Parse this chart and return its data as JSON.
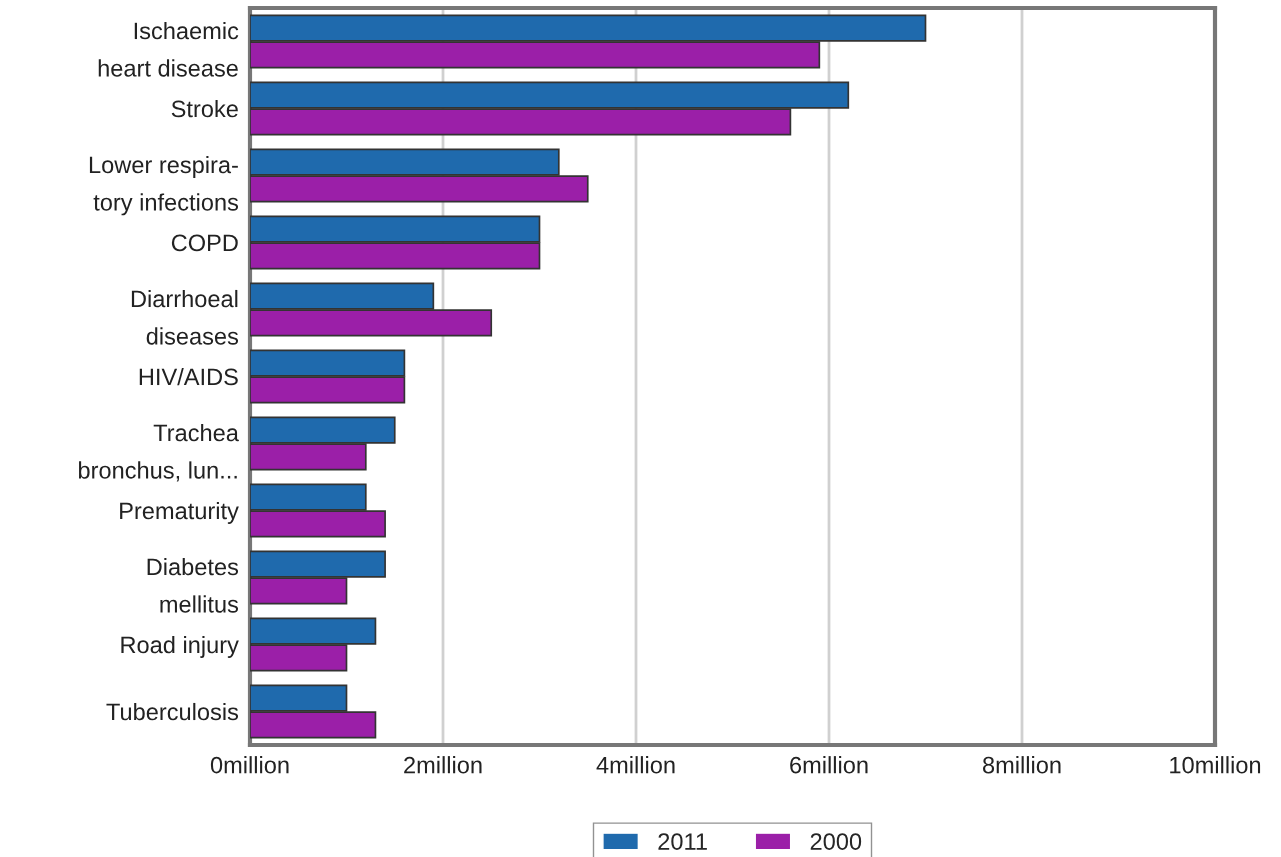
{
  "chart_data": {
    "type": "bar",
    "orientation": "horizontal",
    "categories": [
      "Ischaemic\nheart disease",
      "Stroke",
      "Lower respira-\ntory infections",
      "COPD",
      "Diarrhoeal\ndiseases",
      "HIV/AIDS",
      "Trachea\nbronchus, lun...",
      "Prematurity",
      "Diabetes\nmellitus",
      "Road injury",
      "Tuberculosis"
    ],
    "series": [
      {
        "name": "2011",
        "color": "#1f6aad",
        "values": [
          7.0,
          6.2,
          3.2,
          3.0,
          1.9,
          1.6,
          1.5,
          1.2,
          1.4,
          1.3,
          1.0
        ]
      },
      {
        "name": "2000",
        "color": "#9b1fa8",
        "values": [
          5.9,
          5.6,
          3.5,
          3.0,
          2.5,
          1.6,
          1.2,
          1.4,
          1.0,
          1.0,
          1.3
        ]
      }
    ],
    "xlim": [
      0,
      10
    ],
    "xticks": [
      {
        "value": 0,
        "label": "0million"
      },
      {
        "value": 2,
        "label": "2million"
      },
      {
        "value": 4,
        "label": "4million"
      },
      {
        "value": 6,
        "label": "6million"
      },
      {
        "value": 8,
        "label": "8million"
      },
      {
        "value": 10,
        "label": "10million"
      }
    ],
    "grid": "x",
    "legend": "bottom"
  }
}
